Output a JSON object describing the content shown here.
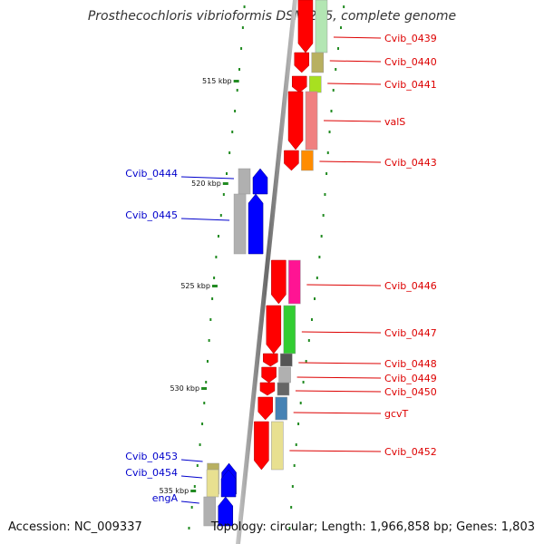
{
  "title": "Prosthecochloris vibrioformis DSM 265, complete genome",
  "footer": {
    "accession": "Accession: NC_009337",
    "summary": "Topology: circular; Length: 1,966,858 bp; Genes: 1,803"
  },
  "ruler_labels": [
    "515 kbp",
    "520 kbp",
    "525 kbp",
    "530 kbp",
    "535 kbp"
  ],
  "genes_right": [
    {
      "label": "Cvib_0439",
      "strand": "-",
      "arrow_color": "#ff0000",
      "cog_color": "#b3e6b3"
    },
    {
      "label": "Cvib_0440",
      "strand": "-",
      "arrow_color": "#ff0000",
      "cog_color": "#b8b060"
    },
    {
      "label": "Cvib_0441",
      "strand": "-",
      "arrow_color": "#ff0000",
      "cog_color": "#a8e020"
    },
    {
      "label": "valS",
      "strand": "-",
      "arrow_color": "#ff0000",
      "cog_color": "#f08080"
    },
    {
      "label": "Cvib_0443",
      "strand": "-",
      "arrow_color": "#ff0000",
      "cog_color": "#ff8c00"
    },
    {
      "label": "Cvib_0446",
      "strand": "-",
      "arrow_color": "#ff0000",
      "cog_color": "#ff1493"
    },
    {
      "label": "Cvib_0447",
      "strand": "-",
      "arrow_color": "#ff0000",
      "cog_color": "#32cd32"
    },
    {
      "label": "Cvib_0448",
      "strand": "-",
      "arrow_color": "#ff0000",
      "cog_color": "#555555"
    },
    {
      "label": "Cvib_0449",
      "strand": "-",
      "arrow_color": "#ff0000",
      "cog_color": "#b0b0b0"
    },
    {
      "label": "Cvib_0450",
      "strand": "-",
      "arrow_color": "#ff0000",
      "cog_color": "#666666"
    },
    {
      "label": "gcvT",
      "strand": "-",
      "arrow_color": "#ff0000",
      "cog_color": "#4682b4"
    },
    {
      "label": "Cvib_0452",
      "strand": "-",
      "arrow_color": "#ff0000",
      "cog_color": "#e8e090"
    }
  ],
  "genes_left": [
    {
      "label": "Cvib_0444",
      "strand": "+",
      "arrow_color": "#0000ff",
      "cog_color": "#b0b0b0"
    },
    {
      "label": "Cvib_0445",
      "strand": "+",
      "arrow_color": "#0000ff",
      "cog_color": "#b0b0b0"
    },
    {
      "label": "Cvib_0453",
      "strand": "+",
      "arrow_color": "#0000ff",
      "cog_color": "#b8b060"
    },
    {
      "label": "Cvib_0454",
      "strand": "+",
      "arrow_color": "#0000ff",
      "cog_color": "#e8e090"
    },
    {
      "label": "engA",
      "strand": "+",
      "arrow_color": "#0000ff",
      "cog_color": "#b0b0b0"
    }
  ],
  "colors": {
    "backbone": "#888888",
    "tick": "#228b22",
    "label_right": "#dd0000",
    "label_left": "#0000cc"
  }
}
